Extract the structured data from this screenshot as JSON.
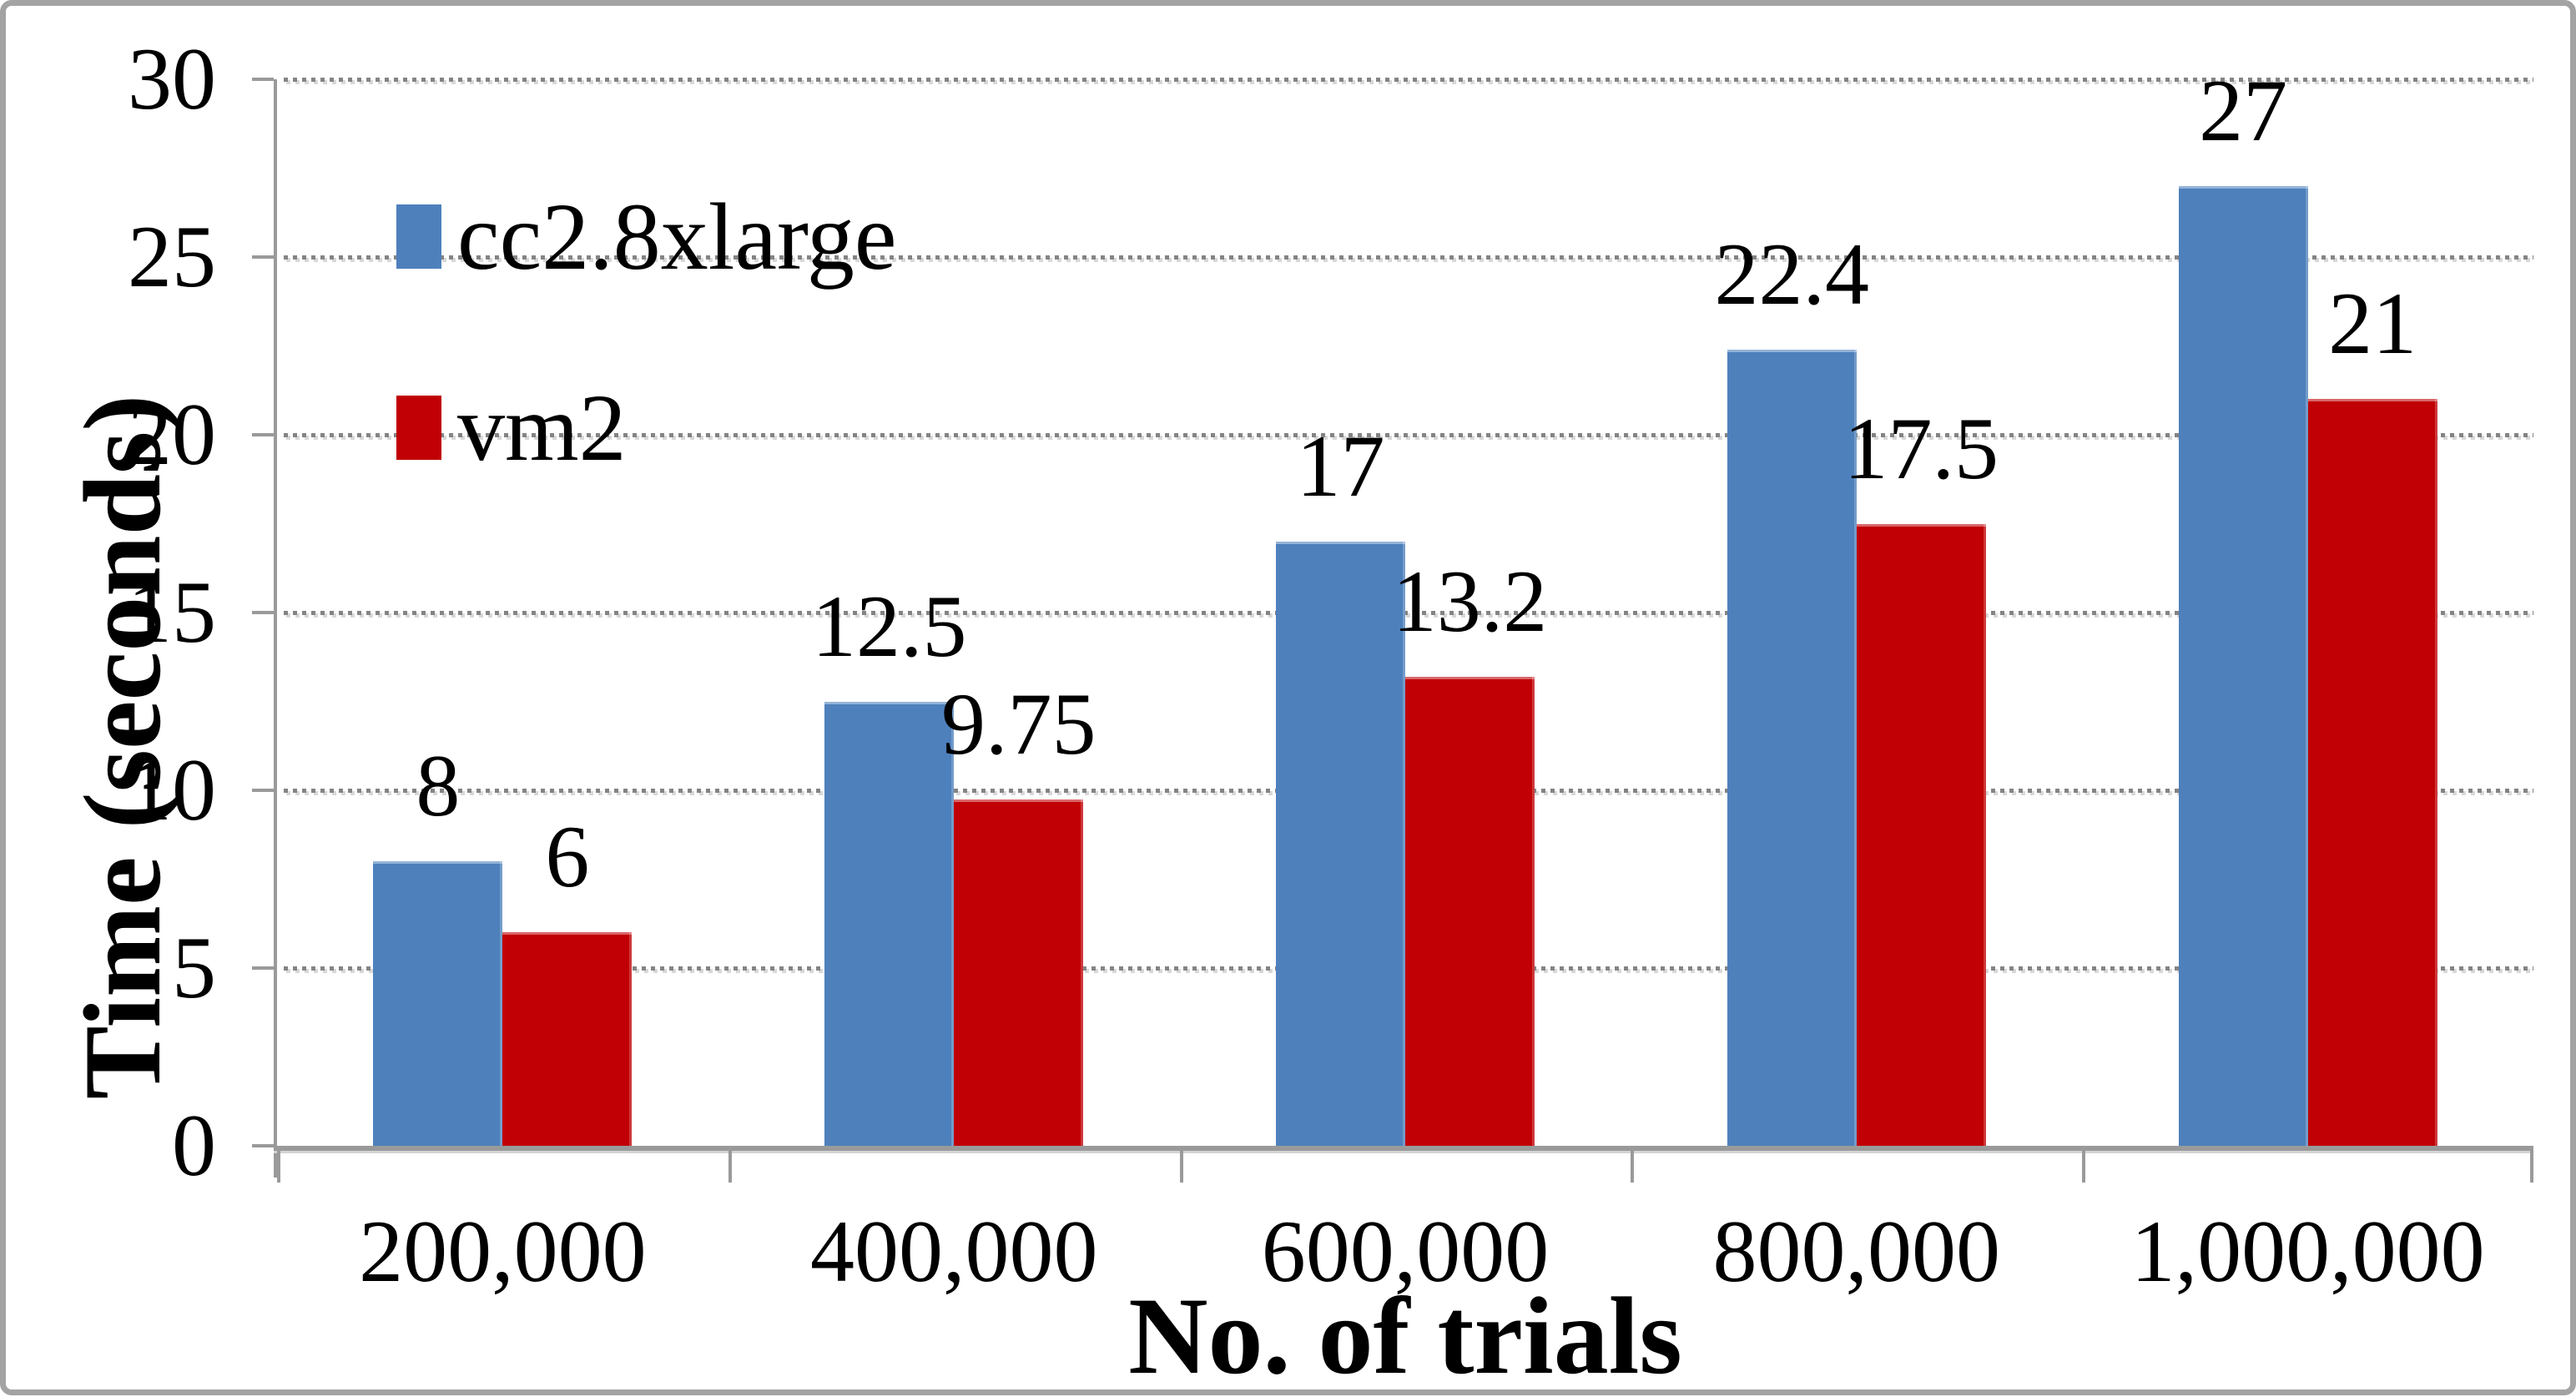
{
  "chart_data": {
    "type": "bar",
    "title": "",
    "xlabel": "No. of trials",
    "ylabel": "Time (seconds)",
    "categories": [
      "200,000",
      "400,000",
      "600,000",
      "800,000",
      "1,000,000"
    ],
    "series": [
      {
        "name": "cc2.8xlarge",
        "color": "#4E80BC",
        "values": [
          8,
          12.5,
          17,
          22.4,
          27
        ],
        "labels": [
          "8",
          "12.5",
          "17",
          "22.4",
          "27"
        ]
      },
      {
        "name": "vm2",
        "color": "#C00004",
        "values": [
          6,
          9.75,
          13.2,
          17.5,
          21
        ],
        "labels": [
          "6",
          "9.75",
          "13.2",
          "17.5",
          "21"
        ]
      }
    ],
    "ylim": [
      0,
      30
    ],
    "yticks": [
      "0",
      "5",
      "10",
      "15",
      "20",
      "25",
      "30"
    ],
    "grid": "horizontal-dotted",
    "legend_position": "top-left-inside",
    "colors": {
      "axis": "#9a9a9a",
      "gridline_dot": "#848484",
      "frame_border": "#a3a3a3",
      "text": "#000000"
    }
  }
}
